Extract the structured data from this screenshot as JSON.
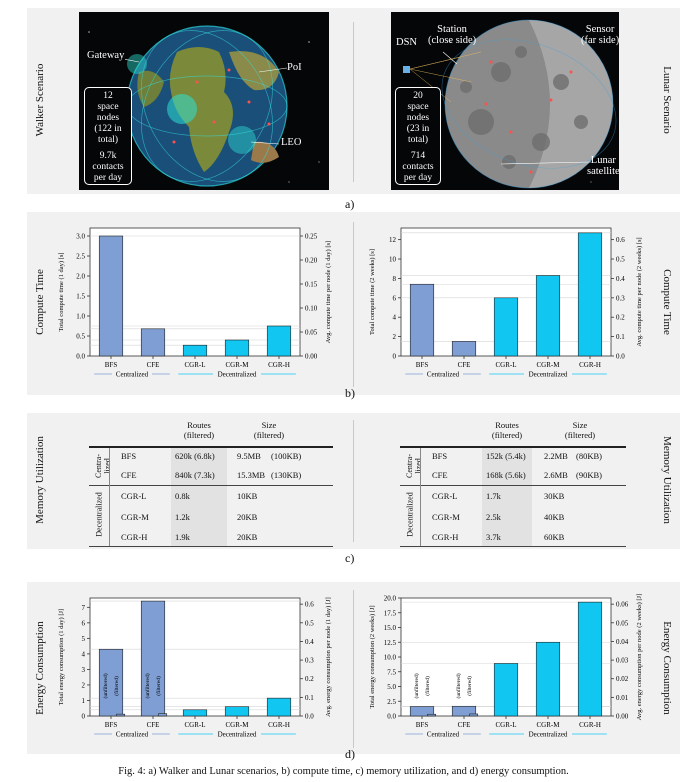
{
  "section_a": {
    "tag": "a)",
    "left": {
      "side_label": "Walker Scenario",
      "label_gateway": "Gateway",
      "label_poi": "PoI",
      "label_leo": "LEO",
      "box_nodes": [
        "12",
        "space",
        "nodes",
        "(122 in",
        "total)"
      ],
      "box_contacts": [
        "9.7k",
        "contacts",
        "per day"
      ]
    },
    "right": {
      "side_label": "Lunar Scenario",
      "label_dsn": "DSN",
      "label_station": [
        "Station",
        "(close side)"
      ],
      "label_sensor": [
        "Sensor",
        "(far side)"
      ],
      "label_sat": [
        "Lunar",
        "satellite"
      ],
      "box_nodes": [
        "20",
        "space",
        "nodes",
        "(23 in",
        "total)"
      ],
      "box_contacts": [
        "714",
        "contacts",
        "per day"
      ]
    }
  },
  "section_b": {
    "tag": "b)",
    "side_left": "Compute Time",
    "side_right": "Compute Time",
    "group_centralized": "Centralized",
    "group_decentralized": "Decentralized"
  },
  "section_c": {
    "tag": "c)",
    "side_left": "Memory Utilization",
    "side_right": "Memory Utilization",
    "head_routes": [
      "Routes",
      "(filtered)"
    ],
    "head_size": [
      "Size",
      "(filtered)"
    ],
    "group_central": [
      "Centra-",
      "lized"
    ],
    "group_decentral": "Decentralized",
    "left_rows": [
      {
        "name": "BFS",
        "routes": "620k (6.8k)",
        "size": "9.5MB",
        "size_f": "(100KB)"
      },
      {
        "name": "CFE",
        "routes": "840k (7.3k)",
        "size": "15.3MB",
        "size_f": "(130KB)"
      },
      {
        "name": "CGR-L",
        "routes": "0.8k",
        "size": "10KB",
        "size_f": ""
      },
      {
        "name": "CGR-M",
        "routes": "1.2k",
        "size": "20KB",
        "size_f": ""
      },
      {
        "name": "CGR-H",
        "routes": "1.9k",
        "size": "20KB",
        "size_f": ""
      }
    ],
    "right_rows": [
      {
        "name": "BFS",
        "routes": "152k (5.4k)",
        "size": "2.2MB",
        "size_f": "(80KB)"
      },
      {
        "name": "CFE",
        "routes": "168k (5.6k)",
        "size": "2.6MB",
        "size_f": "(90KB)"
      },
      {
        "name": "CGR-L",
        "routes": "1.7k",
        "size": "30KB",
        "size_f": ""
      },
      {
        "name": "CGR-M",
        "routes": "2.5k",
        "size": "40KB",
        "size_f": ""
      },
      {
        "name": "CGR-H",
        "routes": "3.7k",
        "size": "60KB",
        "size_f": ""
      }
    ]
  },
  "section_d": {
    "tag": "d)",
    "side_left": "Energy Consumption",
    "side_right": "Energy Consumption"
  },
  "caption": "Fig. 4: a) Walker and Lunar scenarios, b) compute time, c) memory utilization, and d) energy consumption.",
  "colors": {
    "centralized": "#7f9fd4",
    "decentralized": "#12c6f2",
    "panel": "#f1f1f1"
  },
  "chart_data": [
    {
      "id": "compute-walker",
      "type": "bar",
      "categories": [
        "BFS",
        "CFE",
        "CGR-L",
        "CGR-M",
        "CGR-H"
      ],
      "values": [
        3.0,
        0.68,
        0.27,
        0.4,
        0.75
      ],
      "ylim": [
        0,
        3.2
      ],
      "yticks": [
        "0.0",
        "0.5",
        "1.0",
        "1.5",
        "2.0",
        "2.5",
        "3.0"
      ],
      "ytick_vals": [
        0,
        0.5,
        1.0,
        1.5,
        2.0,
        2.5,
        3.0
      ],
      "y2lim": [
        0,
        0.2667
      ],
      "y2ticks": [
        "0.00",
        "0.05",
        "0.10",
        "0.15",
        "0.20",
        "0.25"
      ],
      "y2tick_vals": [
        0,
        0.05,
        0.1,
        0.15,
        0.2,
        0.25
      ],
      "ylabel": "Total compute time (1 day) [s]",
      "y2label": "Avg. compute time per node (1 day) [s]",
      "groups": [
        "Centralized",
        "Decentralized"
      ]
    },
    {
      "id": "compute-lunar",
      "type": "bar",
      "categories": [
        "BFS",
        "CFE",
        "CGR-L",
        "CGR-M",
        "CGR-H"
      ],
      "values": [
        7.4,
        1.5,
        6.0,
        8.3,
        12.7
      ],
      "ylim": [
        0,
        13.2
      ],
      "yticks": [
        "0",
        "2",
        "4",
        "6",
        "8",
        "10",
        "12"
      ],
      "ytick_vals": [
        0,
        2,
        4,
        6,
        8,
        10,
        12
      ],
      "y2lim": [
        0,
        0.66
      ],
      "y2ticks": [
        "0.0",
        "0.1",
        "0.2",
        "0.3",
        "0.4",
        "0.5",
        "0.6"
      ],
      "y2tick_vals": [
        0,
        0.1,
        0.2,
        0.3,
        0.4,
        0.5,
        0.6
      ],
      "ylabel": "Total compute time (2 weeks) [s]",
      "y2label": "Avg. compute time per node (2 weeks) [s]",
      "groups": [
        "Centralized",
        "Decentralized"
      ]
    },
    {
      "id": "energy-walker",
      "type": "bar",
      "categories": [
        "BFS",
        "CFE",
        "CGR-L",
        "CGR-M",
        "CGR-H"
      ],
      "values": [
        4.3,
        7.4,
        0.4,
        0.6,
        1.15
      ],
      "filtered_values": [
        0.12,
        0.15
      ],
      "bar_notes": [
        "(unfiltered)",
        "(filtered)"
      ],
      "ylim": [
        0,
        7.6
      ],
      "yticks": [
        "0",
        "1",
        "2",
        "3",
        "4",
        "5",
        "6",
        "7"
      ],
      "ytick_vals": [
        0,
        1,
        2,
        3,
        4,
        5,
        6,
        7
      ],
      "y2lim": [
        0,
        0.633
      ],
      "y2ticks": [
        "0.0",
        "0.1",
        "0.2",
        "0.3",
        "0.4",
        "0.5",
        "0.6"
      ],
      "y2tick_vals": [
        0,
        0.1,
        0.2,
        0.3,
        0.4,
        0.5,
        0.6
      ],
      "ylabel": "Total energy consumption (1 day) [J]",
      "y2label": "Avg. energy consumption per node (1 day) [J]",
      "groups": [
        "Centralized",
        "Decentralized"
      ]
    },
    {
      "id": "energy-lunar",
      "type": "bar",
      "categories": [
        "BFS",
        "CFE",
        "CGR-L",
        "CGR-M",
        "CGR-H"
      ],
      "values": [
        1.6,
        1.65,
        8.9,
        12.5,
        19.3
      ],
      "filtered_values": [
        0.3,
        0.35
      ],
      "bar_notes": [
        "(unfiltered)",
        "(filtered)"
      ],
      "ylim": [
        0,
        20.0
      ],
      "yticks": [
        "0.0",
        "2.5",
        "5.0",
        "7.5",
        "10.0",
        "12.5",
        "15.0",
        "17.5",
        "20.0"
      ],
      "ytick_vals": [
        0,
        2.5,
        5.0,
        7.5,
        10.0,
        12.5,
        15.0,
        17.5,
        20.0
      ],
      "y2lim": [
        0,
        0.0633
      ],
      "y2ticks": [
        "0.00",
        "0.01",
        "0.02",
        "0.03",
        "0.04",
        "0.05",
        "0.06"
      ],
      "y2tick_vals": [
        0,
        0.01,
        0.02,
        0.03,
        0.04,
        0.05,
        0.06
      ],
      "ylabel": "Total energy consumption (2 weeks) [J]",
      "y2label": "Avg. energy consumption per node (2 weeks) [J]",
      "groups": [
        "Centralized",
        "Decentralized"
      ]
    }
  ]
}
